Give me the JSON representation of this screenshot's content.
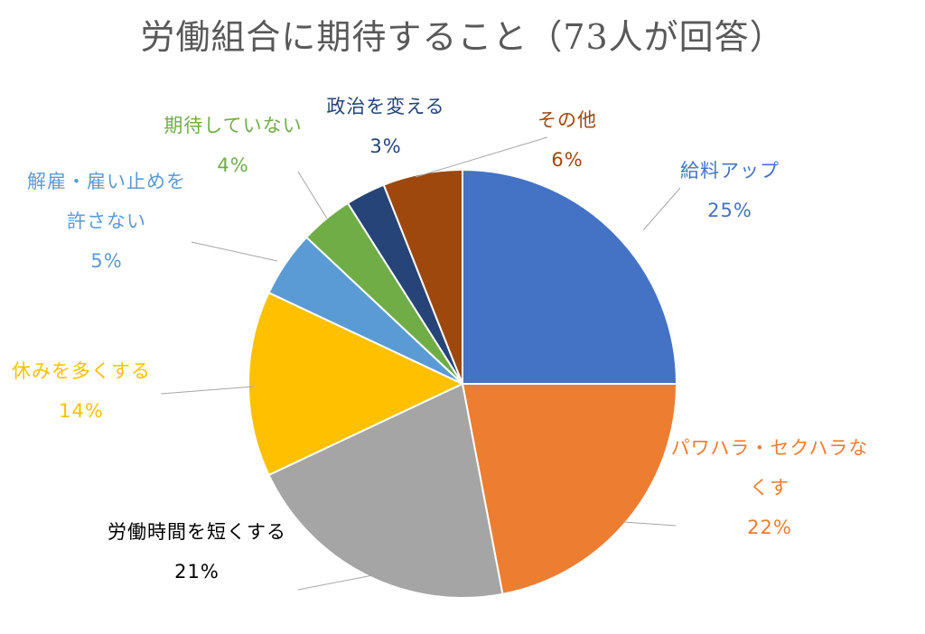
{
  "chart_data": {
    "type": "pie",
    "title": "労働組合に期待すること（73人が回答）",
    "start_angle_deg": 0,
    "direction": "clockwise",
    "slices": [
      {
        "name": "給料アップ",
        "value": 25,
        "percent_label": "25%",
        "color": "#4472C4",
        "label_lines": [
          "給料アップ",
          "25%"
        ]
      },
      {
        "name": "パワハラ・セクハラなくす",
        "value": 22,
        "percent_label": "22%",
        "color": "#ED7D31",
        "label_lines": [
          "パワハラ・セクハラな",
          "くす",
          "22%"
        ]
      },
      {
        "name": "労働時間を短くする",
        "value": 21,
        "percent_label": "21%",
        "color": "#A5A5A5",
        "label_color": "#000000",
        "label_lines": [
          "労働時間を短くする",
          "21%"
        ]
      },
      {
        "name": "休みを多くする",
        "value": 14,
        "percent_label": "14%",
        "color": "#FFC000",
        "label_lines": [
          "休みを多くする",
          "14%"
        ]
      },
      {
        "name": "解雇・雇い止めを許さない",
        "value": 5,
        "percent_label": "5%",
        "color": "#5B9BD5",
        "label_lines": [
          "解雇・雇い止めを",
          "許さない",
          "5%"
        ]
      },
      {
        "name": "期待していない",
        "value": 4,
        "percent_label": "4%",
        "color": "#70AD47",
        "label_lines": [
          "期待していない",
          "4%"
        ]
      },
      {
        "name": "政治を変える",
        "value": 3,
        "percent_label": "3%",
        "color": "#264478",
        "label_lines": [
          "政治を変える",
          "3%"
        ]
      },
      {
        "name": "その他",
        "value": 6,
        "percent_label": "6%",
        "color": "#9E480E",
        "label_lines": [
          "その他",
          "6%"
        ]
      }
    ]
  }
}
